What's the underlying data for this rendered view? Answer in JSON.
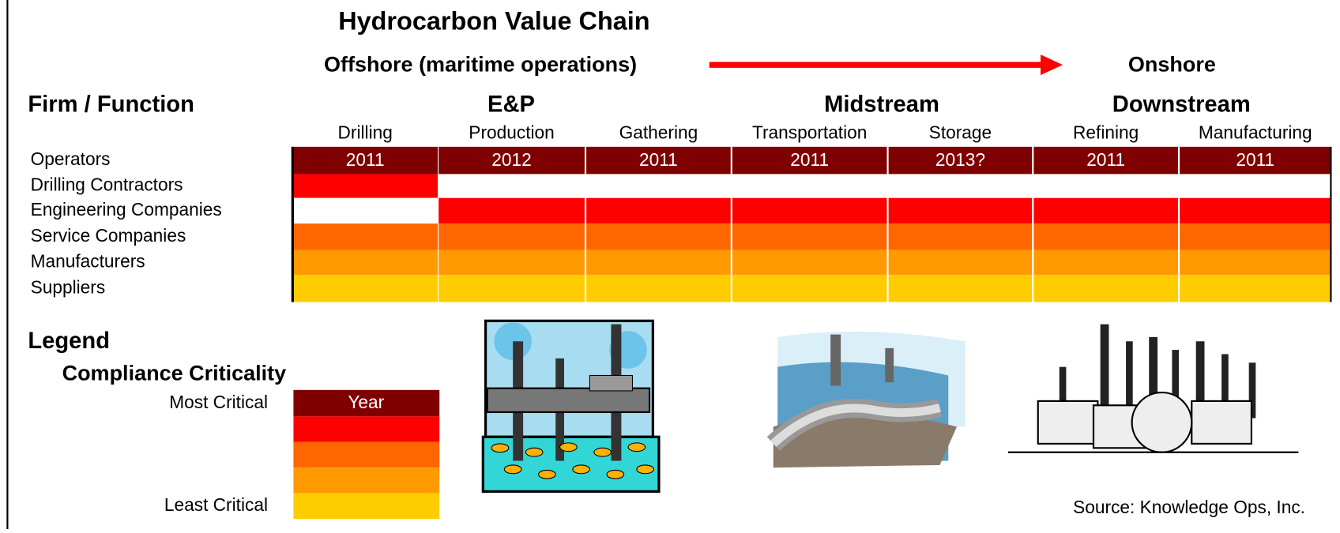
{
  "title": "Hydrocarbon Value Chain",
  "offshore": "Offshore (maritime operations)",
  "onshore": "Onshore",
  "row_header": "Firm / Function",
  "stages": [
    "E&P",
    "Midstream",
    "Downstream"
  ],
  "functions": [
    "Drilling",
    "Production",
    "Gathering",
    "Transportation",
    "Storage",
    "Refining",
    "Manufacturing"
  ],
  "firms": [
    "Operators",
    "Drilling Contractors",
    "Engineering Companies",
    "Service Companies",
    "Manufacturers",
    "Suppliers"
  ],
  "operator_years": [
    "2011",
    "2012",
    "2011",
    "2011",
    "2013?",
    "2011",
    "2011"
  ],
  "legend": {
    "title": "Legend",
    "subtitle": "Compliance Criticality",
    "year": "Year",
    "most": "Most Critical",
    "least": "Least Critical"
  },
  "source": "Source: Knowledge Ops, Inc."
}
